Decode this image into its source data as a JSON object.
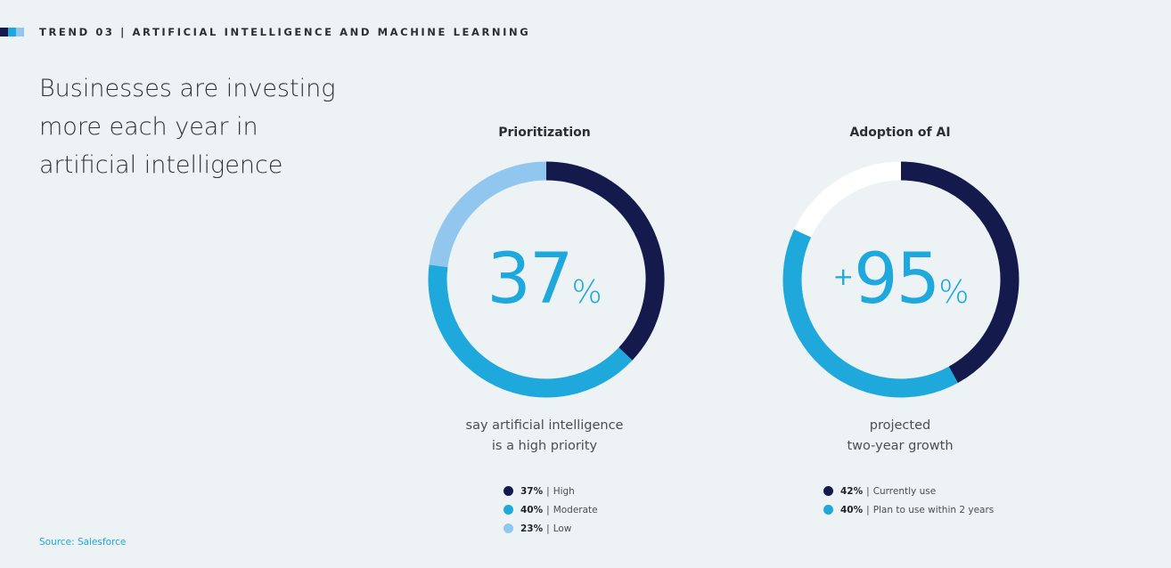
{
  "header": {
    "trend_label": "TREND 03 | ARTIFICIAL INTELLIGENCE AND MACHINE LEARNING",
    "bar_colors": [
      "#141a4b",
      "#1ea8dc",
      "#91c7ee"
    ]
  },
  "headline": [
    "Businesses are investing",
    "more each year in",
    "artificial intelligence"
  ],
  "charts": [
    {
      "title": "Prioritization",
      "big_prefix": "",
      "big_number": "37",
      "big_suffix": "%",
      "caption": [
        "say artificial intelligence",
        "is a high priority"
      ],
      "legend": [
        {
          "value": "37%",
          "sep": "|",
          "label": "High",
          "color": "#141a4b"
        },
        {
          "value": "40%",
          "sep": "|",
          "label": "Moderate",
          "color": "#1ea8dc"
        },
        {
          "value": "23%",
          "sep": "|",
          "label": "Low",
          "color": "#91c7ee"
        }
      ]
    },
    {
      "title": "Adoption of AI",
      "big_prefix": "+",
      "big_number": "95",
      "big_suffix": "%",
      "caption": [
        "projected",
        "two-year growth"
      ],
      "legend": [
        {
          "value": "42%",
          "sep": "|",
          "label": "Currently use",
          "color": "#141a4b"
        },
        {
          "value": "40%",
          "sep": "|",
          "label": "Plan to use within 2 years",
          "color": "#1ea8dc"
        }
      ]
    }
  ],
  "chart_data": [
    {
      "type": "pie",
      "title": "Prioritization",
      "categories": [
        "High",
        "Moderate",
        "Low"
      ],
      "values": [
        37,
        40,
        23
      ],
      "colors": [
        "#141a4b",
        "#1ea8dc",
        "#91c7ee"
      ]
    },
    {
      "type": "pie",
      "title": "Adoption of AI",
      "categories": [
        "Currently use",
        "Plan to use within 2 years",
        ""
      ],
      "values": [
        42,
        40,
        18
      ],
      "colors": [
        "#141a4b",
        "#1ea8dc",
        "#ffffff"
      ]
    }
  ],
  "source": "Source: Salesforce"
}
